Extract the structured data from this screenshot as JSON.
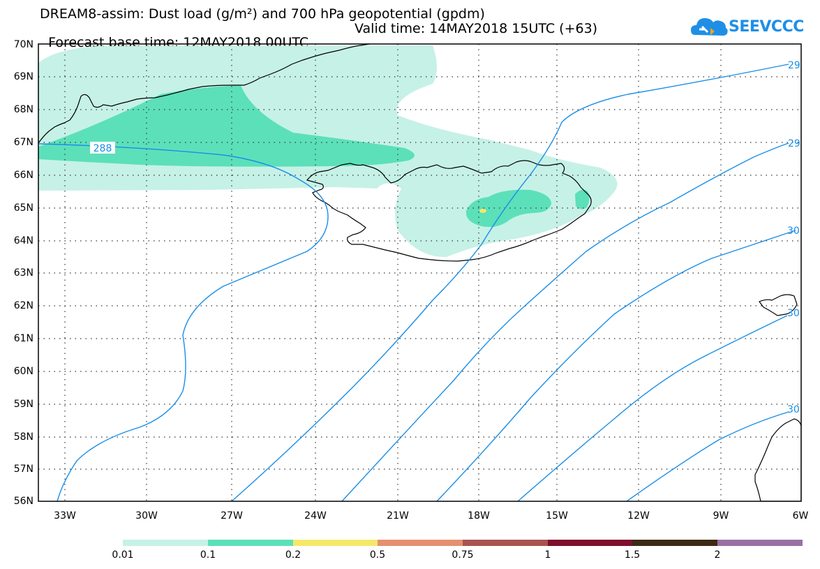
{
  "header": {
    "line1": "DREAM8-assim: Dust load (g/m²) and 700 hPa geopotential (gpdm)",
    "base_time": "Forecast base time: 12MAY2018 00UTC",
    "valid_time": "Valid time: 14MAY2018 15UTC (+63)"
  },
  "logo": {
    "text": "SEEVCCC",
    "icon": "cloud-icon",
    "color": "#1f8fe6"
  },
  "map": {
    "lat_labels": [
      "70N",
      "69N",
      "68N",
      "67N",
      "66N",
      "65N",
      "64N",
      "63N",
      "62N",
      "61N",
      "60N",
      "59N",
      "58N",
      "57N",
      "56N"
    ],
    "lon_labels": [
      "33W",
      "30W",
      "27W",
      "24W",
      "21W",
      "18W",
      "15W",
      "12W",
      "9W",
      "6W"
    ],
    "contour_labels": {
      "c288": "288",
      "c29a": "29",
      "c29b": "29",
      "c30a": "30",
      "c30b": "30",
      "c30c": "30"
    },
    "contour_color": "#1a8ee6",
    "dust_colors": {
      "low": "#c6f1e7",
      "mid": "#5ce0ba",
      "high": "#f4e86a"
    }
  },
  "colorbar": {
    "colors": [
      "#c6f1e7",
      "#5ce0ba",
      "#f4e86a",
      "#e59070",
      "#a85450",
      "#7d0f2c",
      "#3d2a16",
      "#9a6fa6"
    ],
    "labels": [
      "0.01",
      "0.1",
      "0.2",
      "0.5",
      "0.75",
      "1",
      "1.5",
      "2"
    ]
  }
}
